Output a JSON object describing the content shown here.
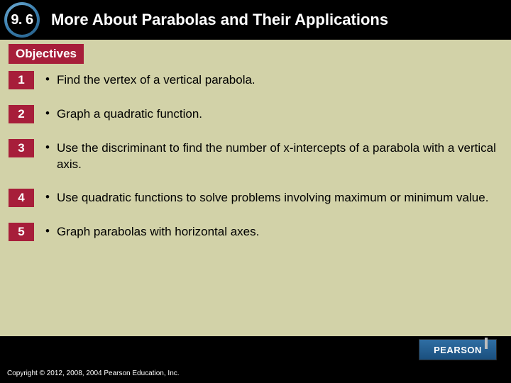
{
  "colors": {
    "page_bg": "#000000",
    "content_bg": "#d2d2a8",
    "accent": "#a71e3a",
    "logo_gradient_top": "#2f6ea3",
    "logo_gradient_bottom": "#1a4f7e",
    "text_light": "#ffffff",
    "text_dark": "#000000"
  },
  "header": {
    "section_number": "9. 6",
    "title": "More About Parabolas and Their Applications"
  },
  "objectives": {
    "label": "Objectives",
    "items": [
      {
        "num": "1",
        "text": "Find the vertex of a vertical parabola."
      },
      {
        "num": "2",
        "text": "Graph a quadratic function."
      },
      {
        "num": "3",
        "text": "Use the discriminant to find the number of x-intercepts of a parabola with a vertical axis."
      },
      {
        "num": "4",
        "text": "Use quadratic functions to solve problems involving maximum or minimum value."
      },
      {
        "num": "5",
        "text": "Graph parabolas with horizontal axes."
      }
    ]
  },
  "footer": {
    "logo_text": "PEARSON",
    "copyright": "Copyright © 2012, 2008, 2004  Pearson Education, Inc."
  }
}
